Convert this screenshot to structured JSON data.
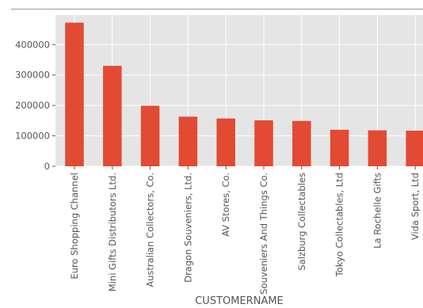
{
  "chart_data": {
    "type": "bar",
    "title": "",
    "xlabel": "CUSTOMERNAME",
    "ylabel": "",
    "categories": [
      "Euro Shopping Channel",
      "Mini Gifts Distributors Ltd.",
      "Australian Collectors, Co.",
      "Dragon Souveniers, Ltd.",
      "AV Stores, Co.",
      "Souveniers And Things Co.",
      "Salzburg Collectables",
      "Tokyo Collectables, Ltd",
      "La Rochelle Gifts",
      "Vida Sport, Ltd"
    ],
    "values": [
      472000,
      330000,
      199000,
      163000,
      157000,
      151000,
      149000,
      120000,
      118000,
      117000
    ],
    "ylim": [
      0,
      497000
    ],
    "yticks": [
      0,
      100000,
      200000,
      300000,
      400000
    ],
    "ytick_labels": [
      "0",
      "100000",
      "200000",
      "300000",
      "400000"
    ],
    "grid": true,
    "legend": "none",
    "colors": {
      "bar": "#e24a33",
      "background": "#e5e5e5",
      "grid": "#ffffff",
      "text": "#555555"
    }
  }
}
